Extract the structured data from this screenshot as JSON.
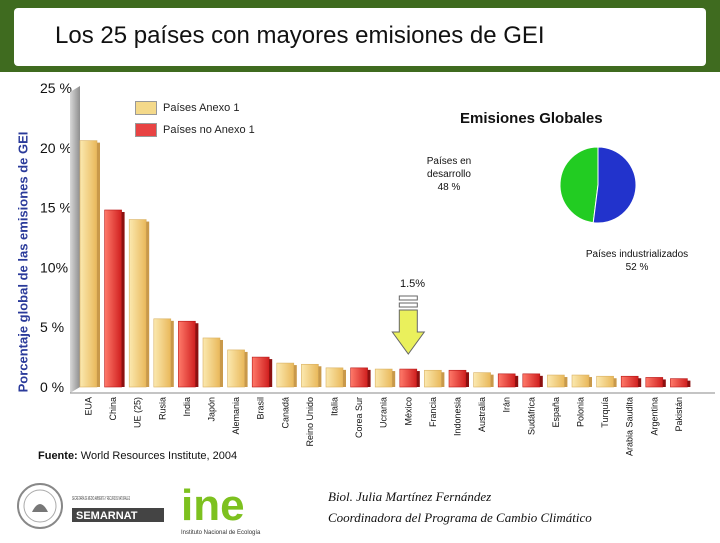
{
  "header": {
    "title": "Los 25 países con mayores emisiones de GEI"
  },
  "legend": {
    "annex1_label": "Países Anexo 1",
    "non_annex1_label": "Países no Anexo 1",
    "annex1_color": "#f4d98a",
    "non_annex1_color": "#e84343"
  },
  "pie": {
    "title": "Emisiones Globales",
    "developing_label": "Países en desarrollo",
    "developing_pct": "48 %",
    "industrialized_label": "Países industrializados",
    "industrialized_pct": "52 %",
    "developing_color": "#22cc22",
    "industrialized_color": "#2233cc"
  },
  "mexico_note": "1.5%",
  "source": {
    "label": "Fuente:",
    "text": "World Resources Institute, 2004"
  },
  "credit": {
    "line1": "Biol. Julia Martínez Fernández",
    "line2": "Coordinadora del Programa de Cambio Climático"
  },
  "logos": {
    "semarnat": "SEMARNAT",
    "semarnat_sub": "SECRETARÍA DE MEDIO AMBIENTE Y RECURSOS NATURALES",
    "ine_text": "ine",
    "ine_caption": "Instituto Nacional de Ecología"
  },
  "chart_data": {
    "type": "bar",
    "title": "Los 25 países con mayores emisiones de GEI",
    "xlabel": "",
    "ylabel": "Porcentaje global de las emisiones de GEI",
    "ylim": [
      0,
      25
    ],
    "yticks": [
      "0 %",
      "5 %",
      "10%",
      "15 %",
      "20 %",
      "25 %"
    ],
    "categories": [
      "EUA",
      "China",
      "UE (25)",
      "Rusia",
      "India",
      "Japón",
      "Alemania",
      "Brasil",
      "Canadá",
      "Reino Unido",
      "Italia",
      "Corea Sur",
      "Ucrania",
      "México",
      "Francia",
      "Indonesia",
      "Australia",
      "Irán",
      "Sudáfrica",
      "España",
      "Polonia",
      "Turquía",
      "Arabia Saudita",
      "Argentina",
      "Pakistán"
    ],
    "values": [
      20.6,
      14.8,
      14.0,
      5.7,
      5.5,
      4.1,
      3.1,
      2.5,
      2.0,
      1.9,
      1.6,
      1.6,
      1.5,
      1.5,
      1.4,
      1.4,
      1.2,
      1.1,
      1.1,
      1.0,
      1.0,
      0.9,
      0.9,
      0.8,
      0.7
    ],
    "group": [
      "annex1",
      "non_annex1",
      "annex1",
      "annex1",
      "non_annex1",
      "annex1",
      "annex1",
      "non_annex1",
      "annex1",
      "annex1",
      "annex1",
      "non_annex1",
      "annex1",
      "non_annex1",
      "annex1",
      "non_annex1",
      "annex1",
      "non_annex1",
      "non_annex1",
      "annex1",
      "annex1",
      "annex1",
      "non_annex1",
      "non_annex1",
      "non_annex1"
    ],
    "legend": [
      "Países Anexo 1",
      "Países no Anexo 1"
    ],
    "pie": {
      "labels": [
        "Países en desarrollo",
        "Países industrializados"
      ],
      "values": [
        48,
        52
      ]
    }
  }
}
